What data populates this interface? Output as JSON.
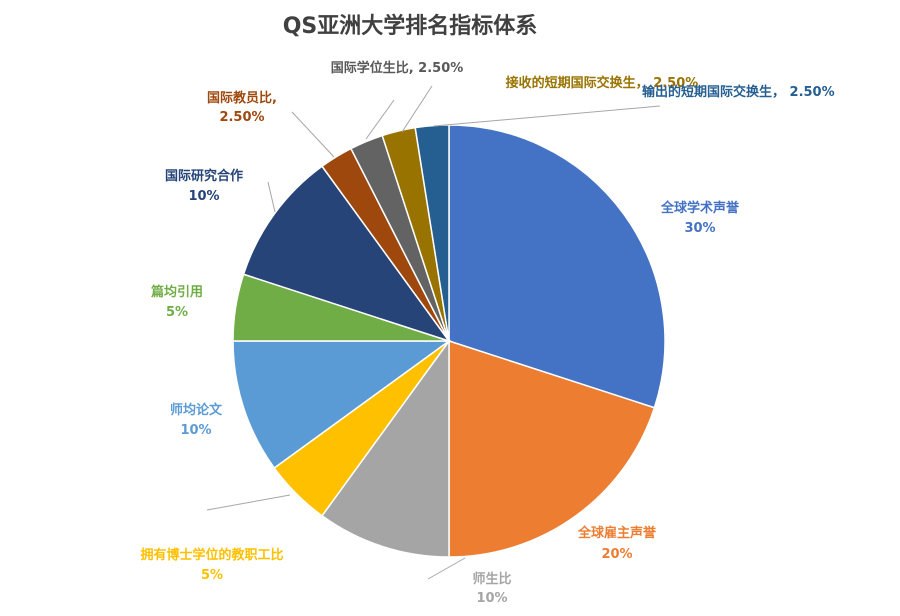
{
  "chart_data": {
    "type": "pie",
    "title": "QS亚洲大学排名指标体系",
    "start_angle_deg": 0,
    "slices": [
      {
        "label": "全球学术声誉",
        "value": 30,
        "value_label": "30%",
        "color": "#4472C4"
      },
      {
        "label": "全球雇主声誉",
        "value": 20,
        "value_label": "20%",
        "color": "#ED7D31"
      },
      {
        "label": "师生比",
        "value": 10,
        "value_label": "10%",
        "color": "#A5A5A5"
      },
      {
        "label": "拥有博士学位的教职工比",
        "value": 5,
        "value_label": "5%",
        "color": "#FFC000"
      },
      {
        "label": "师均论文",
        "value": 10,
        "value_label": "10%",
        "color": "#5B9BD5"
      },
      {
        "label": "篇均引用",
        "value": 5,
        "value_label": "5%",
        "color": "#70AD47"
      },
      {
        "label": "国际研究合作",
        "value": 10,
        "value_label": "10%",
        "color": "#264478"
      },
      {
        "label": "国际教员比,",
        "value": 2.5,
        "value_label": "2.50%",
        "color": "#9E480E"
      },
      {
        "label": "国际学位生比,",
        "value": 2.5,
        "value_label": "2.50%",
        "color": "#636363"
      },
      {
        "label": "接收的短期国际交换生，",
        "value": 2.5,
        "value_label": "2.50%",
        "color": "#997300"
      },
      {
        "label": "输出的短期国际交换生，",
        "value": 2.5,
        "value_label": "2.50%",
        "color": "#255E91"
      }
    ]
  }
}
